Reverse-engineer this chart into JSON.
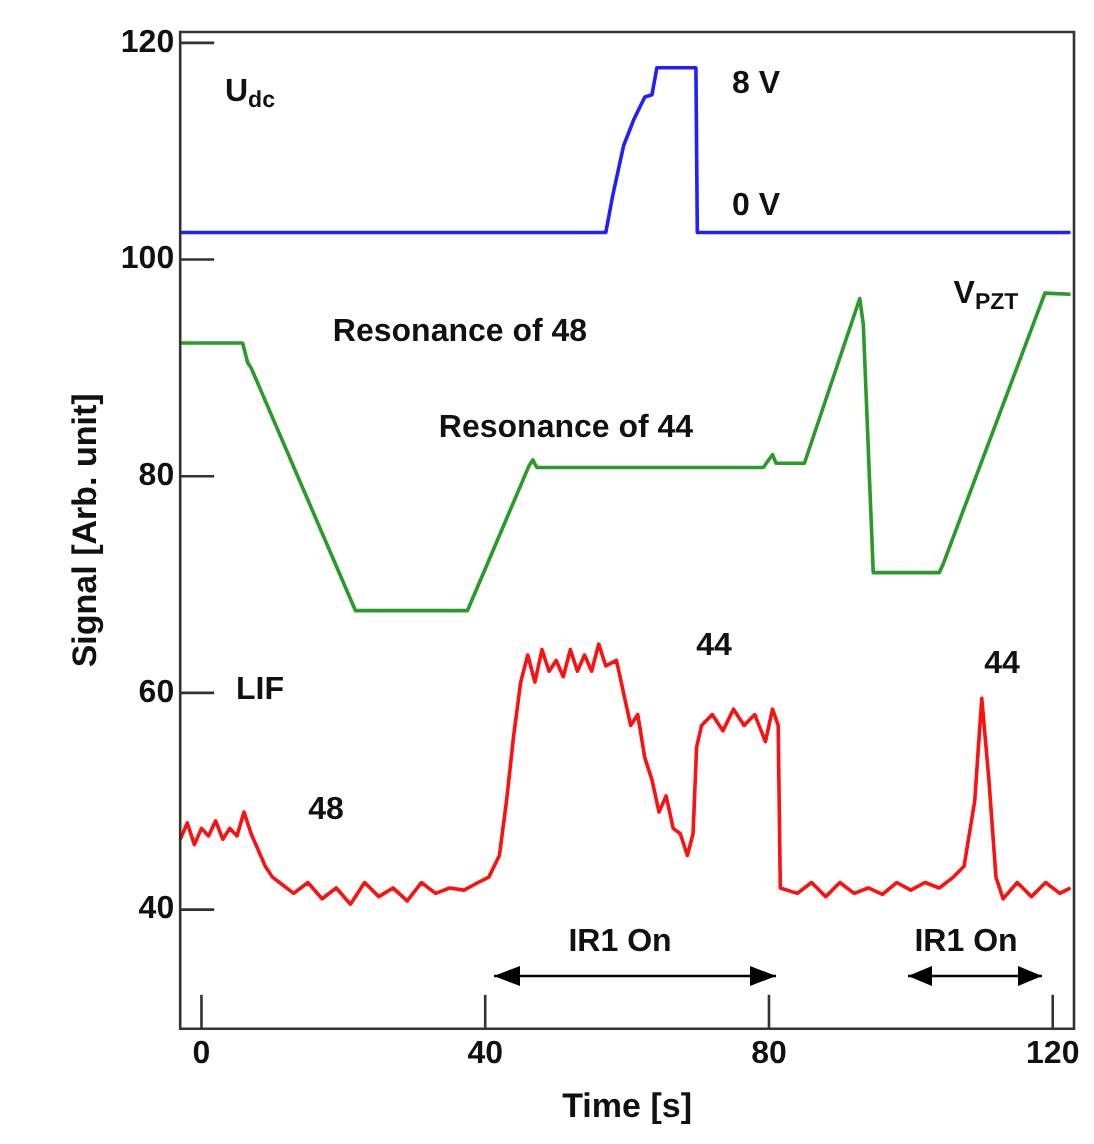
{
  "chart_data": {
    "type": "line",
    "xlabel": "Time [s]",
    "ylabel": "Signal [Arb. unit]",
    "xlim": [
      -3,
      123
    ],
    "xticks": [
      0,
      40,
      80,
      120
    ],
    "ylim": [
      29,
      121
    ],
    "yticks": [
      40,
      60,
      80,
      100,
      120
    ],
    "grid": false,
    "legend": false,
    "marker": "none",
    "series": [
      {
        "color": "#1f1fff",
        "x": [
          -3,
          57,
          58,
          59.5,
          61,
          62.5,
          63.5,
          64.2,
          69.7,
          69.9,
          122.5
        ],
        "values": [
          102.5,
          102.5,
          106,
          110.5,
          113,
          115,
          115.2,
          117.7,
          117.7,
          102.5,
          102.5
        ]
      },
      {
        "color": "#2a9a2a",
        "x": [
          -3,
          5.8,
          6.5,
          7,
          21.7,
          37.5,
          46.2,
          46.7,
          47.3,
          79.2,
          80.5,
          81,
          85,
          92.8,
          93.3,
          94.7,
          104,
          104.5,
          118.9,
          122.5
        ],
        "values": [
          92.3,
          92.3,
          90.5,
          90,
          67.6,
          67.6,
          81,
          81.5,
          80.8,
          80.8,
          82,
          81.2,
          81.2,
          96.4,
          94,
          71.1,
          71.1,
          71.8,
          96.9,
          96.8
        ]
      },
      {
        "color": "#ff1010",
        "x": [
          -3,
          -2,
          -1,
          0,
          1,
          2,
          3,
          4,
          5,
          6,
          7,
          8,
          9,
          10,
          11,
          13,
          15,
          17,
          19,
          21,
          23,
          25,
          27,
          29,
          31,
          33,
          35,
          37,
          39,
          40.5,
          42,
          43,
          44,
          45,
          46,
          47,
          48,
          49,
          50,
          51,
          52,
          53,
          54,
          55,
          56,
          57,
          58.5,
          59.5,
          60.5,
          61.5,
          62.5,
          63.5,
          64.5,
          65.5,
          66.5,
          67.5,
          68.5,
          69.3,
          69.8,
          70.5,
          72,
          73.5,
          75,
          76.5,
          78,
          79.5,
          80.5,
          81.3,
          81.6,
          84,
          86,
          88,
          90,
          92,
          94,
          96,
          98,
          100,
          102,
          104,
          106,
          107.5,
          109,
          110,
          111,
          112,
          113,
          115,
          117,
          119,
          121,
          122.5
        ],
        "values": [
          46.5,
          48,
          46,
          47.5,
          46.8,
          48.2,
          46.5,
          47.5,
          46.8,
          49,
          47,
          45.5,
          44,
          43,
          42.5,
          41.5,
          42.5,
          41,
          42,
          40.5,
          42.5,
          41.2,
          42,
          40.8,
          42.5,
          41.5,
          42,
          41.8,
          42.5,
          43,
          45,
          50,
          56,
          61,
          63.5,
          61,
          64,
          62,
          63,
          61.5,
          64,
          62,
          63.5,
          62,
          64.5,
          62.5,
          63,
          60,
          57,
          58,
          54,
          52,
          49,
          50.5,
          47.5,
          47,
          45,
          47,
          55,
          57,
          58,
          56.5,
          58.5,
          57,
          58,
          55.5,
          58.5,
          57,
          42,
          41.5,
          42.5,
          41.2,
          42.5,
          41.5,
          42,
          41.4,
          42.5,
          41.8,
          42.5,
          42,
          43,
          44,
          50,
          59.5,
          52,
          43,
          41,
          42.5,
          41.2,
          42.5,
          41.5,
          42
        ]
      }
    ],
    "annotations": [
      "U$_{dc}$",
      "8 V",
      "0 V",
      "V$_{PZT}$",
      "Resonance of 48",
      "Resonance of 44",
      "LIF",
      "48",
      "44",
      "44",
      "IR1 On",
      "IR1 On"
    ]
  }
}
